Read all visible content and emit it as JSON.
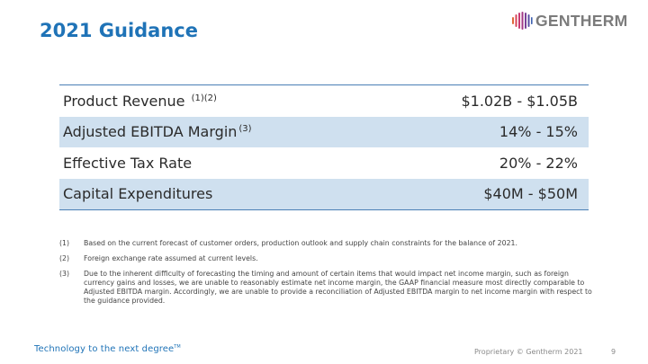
{
  "slide": {
    "title": "2021 Guidance",
    "logo_text": "GENTHERM",
    "colors": {
      "accent": "#1f73b7",
      "row_shade": "#cfe0ef",
      "rule": "#4a7fb5"
    }
  },
  "table": {
    "rows": [
      {
        "label": "Product Revenue ",
        "sup": "(1)(2)",
        "value": "$1.02B - $1.05B"
      },
      {
        "label": "Adjusted EBITDA Margin",
        "sup": "(3)",
        "value": "14% - 15%"
      },
      {
        "label": "Effective Tax Rate",
        "sup": "",
        "value": "20% - 22%"
      },
      {
        "label": "Capital Expenditures",
        "sup": "",
        "value": "$40M - $50M"
      }
    ]
  },
  "footnotes": [
    {
      "num": "(1)",
      "text": "Based on the current forecast of customer orders, production outlook and supply chain constraints for the balance of 2021."
    },
    {
      "num": "(2)",
      "text": "Foreign exchange rate assumed at current levels."
    },
    {
      "num": "(3)",
      "text": "Due to the inherent difficulty of forecasting the timing and amount of certain items that would impact net income margin, such as foreign currency gains and losses, we are unable to reasonably estimate net income margin, the GAAP financial measure most directly comparable to Adjusted EBITDA margin. Accordingly, we are unable to provide a reconciliation of Adjusted EBITDA margin to net income margin with respect to the guidance provided."
    }
  ],
  "footer": {
    "tagline": "Technology to the next degree",
    "tagline_mark": "TM",
    "copyright": "Proprietary © Gentherm 2021",
    "page_number": "9"
  }
}
